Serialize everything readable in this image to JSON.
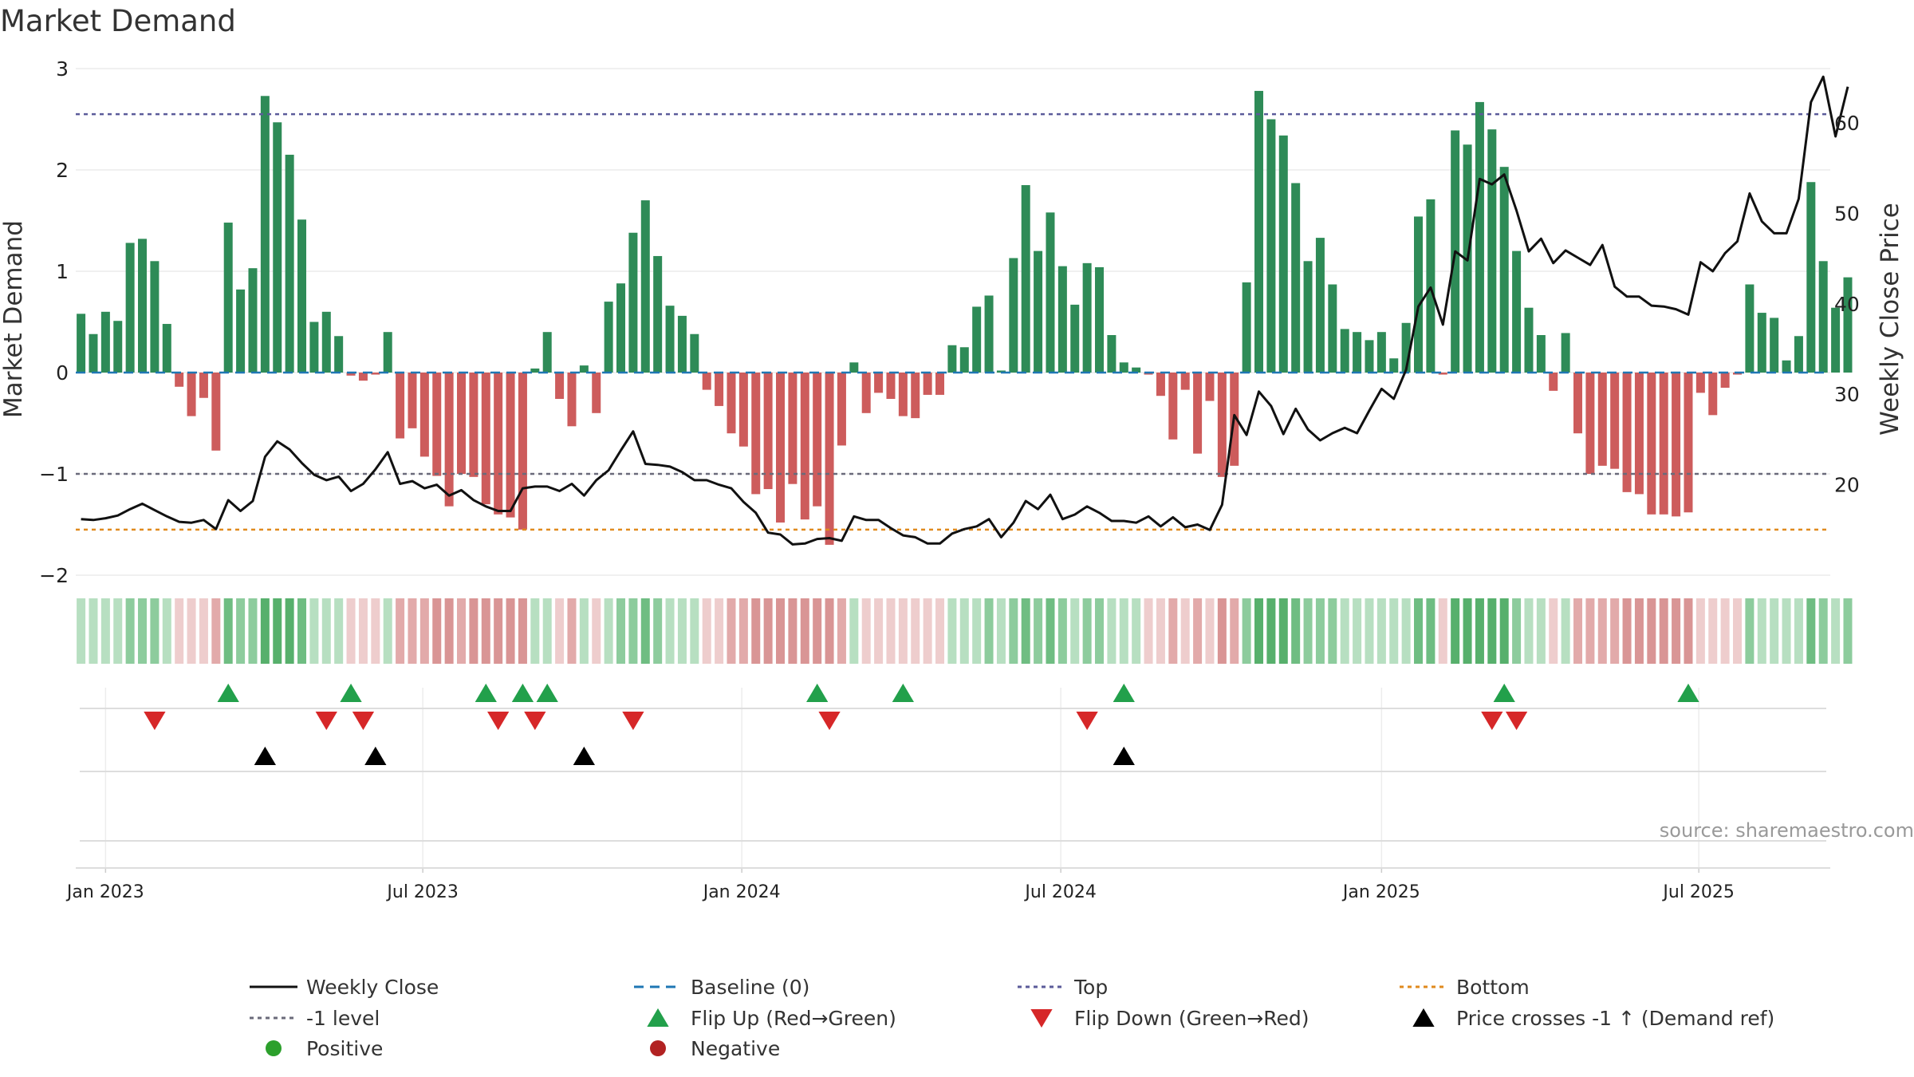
{
  "chart_data": {
    "type": "bar",
    "title": "Market Demand",
    "ylabel": "Market Demand",
    "y2label": "Weekly Close Price",
    "ylim": [
      -2,
      3
    ],
    "y2lim": [
      10,
      66
    ],
    "yticks": [
      -2,
      -1,
      0,
      1,
      2,
      3
    ],
    "y2ticks": [
      20,
      30,
      40,
      50,
      60
    ],
    "ytick_labels": [
      "−2",
      "−1",
      "0",
      "1",
      "2",
      "3"
    ],
    "y2tick_labels": [
      "20",
      "30",
      "40",
      "50",
      "60"
    ],
    "x_start": "2023-01-01",
    "x_step_days": 7,
    "xlim_days": [
      -3,
      998
    ],
    "xticks": [
      {
        "day": 14,
        "label": "Jan 2023"
      },
      {
        "day": 195,
        "label": "Jul 2023"
      },
      {
        "day": 377,
        "label": "Jan 2024"
      },
      {
        "day": 559,
        "label": "Jul 2024"
      },
      {
        "day": 742,
        "label": "Jan 2025"
      },
      {
        "day": 923,
        "label": "Jul 2025"
      }
    ],
    "levels": {
      "top": 2.55,
      "minus_one": -1,
      "bottom": -1.55,
      "baseline": 0
    },
    "demand": [
      0.58,
      0.38,
      0.6,
      0.51,
      1.28,
      1.32,
      1.1,
      0.48,
      -0.14,
      -0.43,
      -0.25,
      -0.77,
      1.48,
      0.82,
      1.03,
      2.73,
      2.47,
      2.15,
      1.51,
      0.5,
      0.6,
      0.36,
      -0.03,
      -0.08,
      -0.02,
      0.4,
      -0.65,
      -0.55,
      -0.83,
      -1.02,
      -1.32,
      -1.0,
      -1.03,
      -1.3,
      -1.4,
      -1.43,
      -1.55,
      0.04,
      0.4,
      -0.26,
      -0.53,
      0.07,
      -0.4,
      0.7,
      0.88,
      1.38,
      1.7,
      1.15,
      0.66,
      0.56,
      0.38,
      -0.17,
      -0.33,
      -0.6,
      -0.73,
      -1.2,
      -1.15,
      -1.48,
      -1.1,
      -1.45,
      -1.32,
      -1.7,
      -0.72,
      0.1,
      -0.4,
      -0.2,
      -0.26,
      -0.43,
      -0.45,
      -0.22,
      -0.22,
      0.27,
      0.25,
      0.65,
      0.76,
      0.02,
      1.13,
      1.85,
      1.2,
      1.58,
      1.05,
      0.67,
      1.08,
      1.04,
      0.37,
      0.1,
      0.05,
      -0.02,
      -0.23,
      -0.66,
      -0.17,
      -0.8,
      -0.28,
      -1.03,
      -0.92,
      0.89,
      2.78,
      2.5,
      2.34,
      1.87,
      1.1,
      1.33,
      0.87,
      0.43,
      0.4,
      0.32,
      0.4,
      0.14,
      0.49,
      1.54,
      1.71,
      -0.02,
      2.39,
      2.25,
      2.67,
      2.4,
      2.03,
      1.2,
      0.64,
      0.37,
      -0.18,
      0.39,
      -0.6,
      -1.0,
      -0.92,
      -0.95,
      -1.18,
      -1.2,
      -1.4,
      -1.4,
      -1.42,
      -1.38,
      -0.2,
      -0.42,
      -0.15,
      -0.02,
      0.87,
      0.59,
      0.54,
      0.12,
      0.36,
      1.88,
      1.1,
      0.64,
      0.94
    ],
    "close": [
      16.2,
      16.1,
      16.3,
      16.6,
      17.3,
      17.9,
      17.2,
      16.5,
      15.9,
      15.8,
      16.1,
      15.1,
      18.3,
      17.1,
      18.2,
      23.1,
      24.8,
      23.9,
      22.4,
      21.1,
      20.5,
      20.9,
      19.3,
      20.1,
      21.7,
      23.6,
      20.1,
      20.4,
      19.6,
      20.0,
      18.8,
      19.4,
      18.3,
      17.6,
      17.1,
      17.1,
      19.6,
      19.8,
      19.8,
      19.3,
      20.1,
      18.8,
      20.5,
      21.6,
      23.8,
      25.9,
      22.3,
      22.2,
      22.0,
      21.4,
      20.5,
      20.5,
      20.0,
      19.6,
      18.1,
      16.9,
      14.7,
      14.5,
      13.4,
      13.5,
      14.0,
      14.1,
      13.8,
      16.5,
      16.1,
      16.1,
      15.2,
      14.4,
      14.2,
      13.5,
      13.5,
      14.6,
      15.1,
      15.4,
      16.2,
      14.2,
      15.8,
      18.2,
      17.3,
      18.9,
      16.2,
      16.7,
      17.6,
      16.9,
      16.0,
      16.0,
      15.8,
      16.5,
      15.4,
      16.4,
      15.3,
      15.6,
      15.0,
      17.8,
      27.7,
      25.5,
      30.3,
      28.7,
      25.6,
      28.4,
      26.1,
      24.9,
      25.7,
      26.3,
      25.7,
      28.2,
      30.6,
      29.5,
      32.7,
      39.7,
      41.8,
      37.7,
      45.8,
      44.8,
      53.8,
      53.2,
      54.3,
      50.3,
      45.8,
      47.2,
      44.5,
      45.9,
      45.1,
      44.3,
      46.5,
      41.9,
      40.8,
      40.8,
      39.8,
      39.7,
      39.4,
      38.8,
      44.6,
      43.6,
      45.6,
      46.9,
      52.2,
      49.1,
      47.8,
      47.8,
      51.6,
      62.3,
      65.1,
      58.5,
      64.0
    ],
    "strip_values": [
      0.58,
      0.38,
      0.6,
      0.51,
      1.28,
      1.32,
      1.1,
      0.48,
      -0.14,
      -0.43,
      -0.25,
      -0.77,
      1.48,
      0.82,
      1.03,
      2.73,
      2.47,
      2.15,
      1.51,
      0.5,
      0.6,
      0.36,
      -0.03,
      -0.08,
      -0.02,
      0.4,
      -0.65,
      -0.55,
      -0.83,
      -1.02,
      -1.32,
      -1.0,
      -1.03,
      -1.3,
      -1.4,
      -1.43,
      -1.55,
      0.04,
      0.4,
      -0.26,
      -0.53,
      0.07,
      -0.4,
      0.7,
      0.88,
      1.38,
      1.7,
      1.15,
      0.66,
      0.56,
      0.38,
      -0.17,
      -0.33,
      -0.6,
      -0.73,
      -1.2,
      -1.15,
      -1.48,
      -1.1,
      -1.45,
      -1.32,
      -1.7,
      -0.72,
      0.1,
      -0.4,
      -0.2,
      -0.26,
      -0.43,
      -0.45,
      -0.22,
      -0.22,
      0.27,
      0.25,
      0.65,
      0.76,
      0.02,
      1.13,
      1.85,
      1.2,
      1.58,
      1.05,
      0.67,
      1.08,
      1.04,
      0.37,
      0.1,
      0.05,
      -0.02,
      -0.23,
      -0.66,
      -0.17,
      -0.8,
      -0.28,
      -1.03,
      -0.92,
      0.89,
      2.78,
      2.5,
      2.34,
      1.87,
      1.1,
      1.33,
      0.87,
      0.43,
      0.4,
      0.32,
      0.4,
      0.14,
      0.49,
      1.54,
      1.71,
      -0.02,
      2.39,
      2.25,
      2.67,
      2.4,
      2.03,
      1.2,
      0.64,
      0.37,
      -0.18,
      0.39,
      -0.6,
      -1.0,
      -0.92,
      -0.95,
      -1.18,
      -1.2,
      -1.4,
      -1.4,
      -1.42,
      -1.38,
      -0.2,
      -0.42,
      -0.15,
      -0.02,
      0.87,
      0.59,
      0.54,
      0.12,
      0.36,
      1.88,
      1.1,
      0.64,
      0.94
    ],
    "flip_up_days": [
      84,
      154,
      231,
      252,
      266,
      420,
      469,
      595,
      812,
      917
    ],
    "flip_down_days": [
      42,
      140,
      161,
      238,
      259,
      315,
      427,
      574,
      805,
      819
    ],
    "cross_up_days": [
      105,
      168,
      287,
      595
    ],
    "source": "source: sharemaestro.com",
    "legend": [
      {
        "label": "Weekly Close",
        "kind": "line-black"
      },
      {
        "label": "Baseline (0)",
        "kind": "line-dash-blue"
      },
      {
        "label": "Top",
        "kind": "line-dot-purple"
      },
      {
        "label": "Bottom",
        "kind": "line-dot-orange"
      },
      {
        "label": "-1 level",
        "kind": "line-dot-gray"
      },
      {
        "label": "Flip Up (Red→Green)",
        "kind": "tri-up-green"
      },
      {
        "label": "Flip Down (Green→Red)",
        "kind": "tri-down-red"
      },
      {
        "label": "Price crosses -1 ↑ (Demand ref)",
        "kind": "tri-up-black"
      },
      {
        "label": "Positive",
        "kind": "dot-green"
      },
      {
        "label": "Negative",
        "kind": "dot-red"
      }
    ],
    "colors": {
      "positive_bar": "#2e8b57",
      "negative_bar": "#cd5c5c",
      "close_line": "#111111",
      "baseline": "#1f77b4",
      "top": "#5b5b9a",
      "minus_one": "#6a6a7a",
      "bottom": "#e08a1e",
      "flip_up": "#22a04b",
      "flip_down": "#d62728",
      "cross": "#000000",
      "positive_dot": "#2ca02c",
      "negative_dot": "#b22222",
      "source": "#999999"
    }
  }
}
